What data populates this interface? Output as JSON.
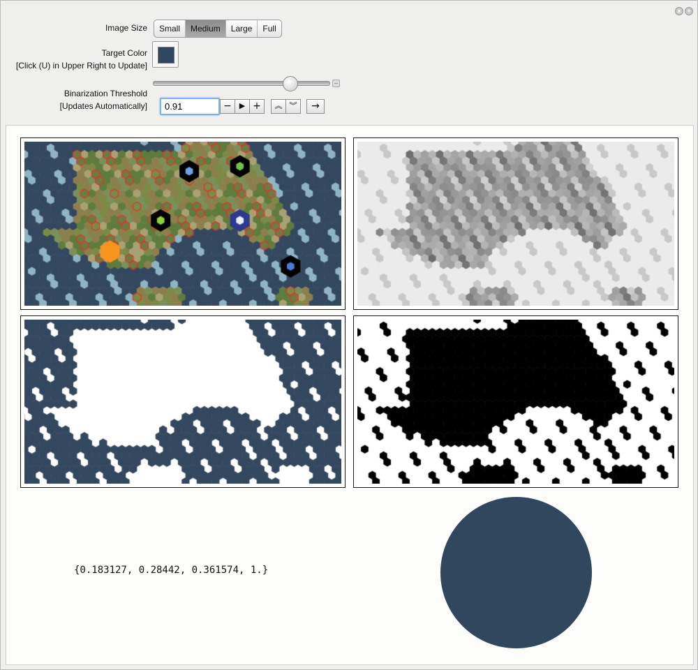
{
  "window": {
    "controls": [
      "close-icon",
      "plus-icon"
    ]
  },
  "image_size": {
    "label": "Image Size",
    "options": [
      "Small",
      "Medium",
      "Large",
      "Full"
    ],
    "selected": "Medium"
  },
  "target_color": {
    "label": "Target Color",
    "hint": "[Click (U) in Upper Right to Update]",
    "value_hex": "#2f4860"
  },
  "threshold": {
    "label": "Binarization Threshold",
    "hint": "[Updates Automatically]",
    "value": "0.91",
    "slider_fraction": 0.78,
    "buttons": [
      "−",
      "▶",
      "+",
      "︽",
      "︾",
      "→"
    ]
  },
  "output": {
    "rgba_text": "{0.183127, 0.28442, 0.361574, 1.}",
    "disk_color_hex": "#30475e",
    "ocean_hex": "#33485f",
    "coast_hex": "#8fb4c4",
    "land_hex": "#6f7a42",
    "border_hex": "#e0342a"
  }
}
